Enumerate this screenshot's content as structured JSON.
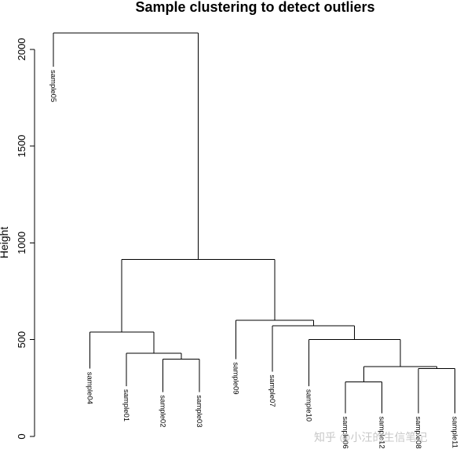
{
  "chart_data": {
    "type": "dendrogram",
    "title": "Sample clustering to detect outliers",
    "xlabel": "",
    "ylabel": "Height",
    "ylim": [
      0,
      2100
    ],
    "yticks": [
      0,
      500,
      1000,
      1500,
      2000
    ],
    "leaves": [
      {
        "label": "sample05",
        "height": 1910
      },
      {
        "label": "sample04",
        "height": 350
      },
      {
        "label": "sample01",
        "height": 260
      },
      {
        "label": "sample02",
        "height": 230
      },
      {
        "label": "sample03",
        "height": 230
      },
      {
        "label": "sample09",
        "height": 400
      },
      {
        "label": "sample07",
        "height": 335
      },
      {
        "label": "sample10",
        "height": 260
      },
      {
        "label": "sample06",
        "height": 120
      },
      {
        "label": "sample12",
        "height": 120
      },
      {
        "label": "sample08",
        "height": 120
      },
      {
        "label": "sample11",
        "height": 120
      }
    ],
    "merges": [
      {
        "left": 4,
        "right": 5,
        "height": 400
      },
      {
        "left": 3,
        "right": 13,
        "height": 430
      },
      {
        "left": 2,
        "right": 14,
        "height": 540
      },
      {
        "left": 9,
        "right": 10,
        "height": 282
      },
      {
        "left": 11,
        "right": 12,
        "height": 350
      },
      {
        "left": 16,
        "right": 17,
        "height": 360
      },
      {
        "left": 8,
        "right": 18,
        "height": 500
      },
      {
        "left": 7,
        "right": 19,
        "height": 572
      },
      {
        "left": 6,
        "right": 20,
        "height": 600
      },
      {
        "left": 15,
        "right": 21,
        "height": 915
      },
      {
        "left": 1,
        "right": 22,
        "height": 2085
      }
    ]
  },
  "watermark": "知乎 @小汪的生信笔记"
}
